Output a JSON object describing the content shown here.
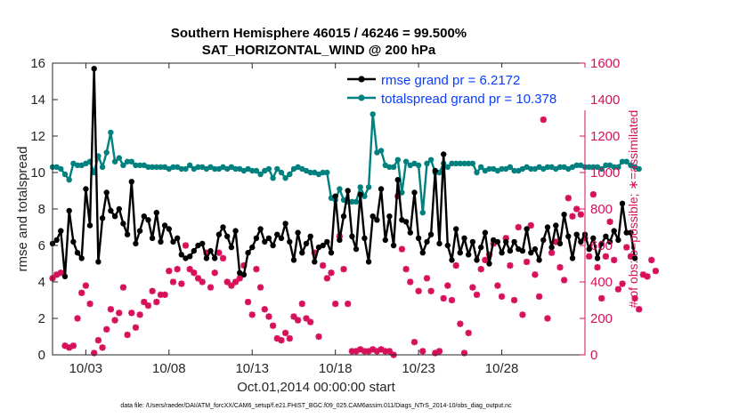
{
  "chart_data": {
    "type": "line",
    "title": "Southern Hemisphere 46015 / 46246 = 99.500%",
    "subtitle": "SAT_HORIZONTAL_WIND @ 200 hPa",
    "xlabel": "Oct.01,2014 00:00:00 start",
    "ylabel": "rmse and totalspread",
    "ylabel_right": "# of obs: o=possible; ∗=assimilated",
    "x_ticks": [
      "10/03",
      "10/08",
      "10/13",
      "10/18",
      "10/23",
      "10/28"
    ],
    "x_tick_days": [
      3,
      8,
      13,
      18,
      23,
      28
    ],
    "xlim": [
      1,
      33
    ],
    "ylim": [
      0,
      16
    ],
    "y_ticks": [
      0,
      2,
      4,
      6,
      8,
      10,
      12,
      14,
      16
    ],
    "ylim_right": [
      0,
      1600
    ],
    "y_ticks_right": [
      0,
      200,
      400,
      600,
      800,
      1000,
      1200,
      1400,
      1600
    ],
    "grid": false,
    "legend_position": "top-right",
    "footer": "data file: /Users/raeder/DAI/ATM_forcXX/CAM6_setup/f.e21.FHIST_BGC.f09_025.CAM6assim.011/Diags_NTrS_2014-10/obs_diag_output.nc",
    "x_start_day": 1,
    "x_step_days": 0.25,
    "series": [
      {
        "name": "rmse grand pr = 6.2172",
        "color": "#000000",
        "axis": "left",
        "values": [
          6.1,
          6.3,
          6.8,
          4.3,
          7.9,
          6.2,
          5.6,
          5.3,
          9.1,
          7.1,
          15.7,
          5.1,
          7.5,
          8.9,
          7.9,
          7.6,
          8.0,
          7.2,
          6.6,
          9.5,
          6.1,
          6.8,
          7.6,
          7.4,
          6.4,
          7.8,
          6.2,
          7.1,
          6.9,
          6.2,
          6.4,
          5.5,
          5.3,
          5.4,
          5.7,
          6.0,
          6.1,
          5.3,
          5.7,
          5.3,
          6.6,
          7.0,
          6.5,
          5.9,
          6.8,
          4.5,
          4.4,
          5.6,
          5.9,
          6.4,
          6.9,
          6.2,
          6.4,
          6.0,
          6.6,
          6.4,
          7.2,
          6.2,
          5.2,
          6.7,
          5.6,
          6.1,
          6.5,
          5.1,
          5.9,
          6.0,
          6.2,
          5.6,
          8.7,
          6.3,
          7.6,
          9.0,
          6.5,
          5.8,
          8.8,
          6.4,
          5.1,
          7.6,
          7.4,
          9.1,
          6.3,
          7.6,
          6.0,
          9.6,
          7.4,
          7.3,
          6.7,
          8.9,
          6.4,
          5.6,
          6.2,
          6.6,
          10.1,
          6.1,
          11.0,
          6.0,
          5.2,
          6.9,
          5.6,
          6.4,
          5.5,
          6.2,
          5.2,
          5.9,
          6.7,
          5.0,
          6.3,
          6.2,
          5.6,
          6.2,
          5.7,
          6.2,
          5.8,
          5.7,
          6.9,
          5.6,
          5.8,
          5.2,
          6.3,
          7.0,
          5.9,
          7.1,
          6.1,
          7.7,
          6.5,
          5.3,
          6.6,
          6.2,
          6.6,
          5.8,
          6.4,
          5.3,
          6.1,
          6.5,
          6.2,
          6.8,
          6.3,
          8.3,
          6.7,
          6.7,
          5.3
        ]
      },
      {
        "name": "totalspread grand pr = 10.378",
        "color": "#00807f",
        "axis": "left",
        "values": [
          10.3,
          10.3,
          10.2,
          9.9,
          9.6,
          10.5,
          10.4,
          10.4,
          10.5,
          10.6,
          10.0,
          10.9,
          10.3,
          11.1,
          12.2,
          10.6,
          10.8,
          10.4,
          10.6,
          10.6,
          10.4,
          10.4,
          10.4,
          10.3,
          10.3,
          10.3,
          10.3,
          10.3,
          10.2,
          10.3,
          10.3,
          10.2,
          10.2,
          10.4,
          10.2,
          10.3,
          10.3,
          10.2,
          10.3,
          10.2,
          10.2,
          10.3,
          10.2,
          10.3,
          10.2,
          10.2,
          10.1,
          10.2,
          10.1,
          10.1,
          9.9,
          10.1,
          10.2,
          9.7,
          10.2,
          10.0,
          9.7,
          9.9,
          10.2,
          10.3,
          10.2,
          10.1,
          10.0,
          10.0,
          9.9,
          10.0,
          10.0,
          8.6,
          8.5,
          9.1,
          8.5,
          8.4,
          8.4,
          8.4,
          9.2,
          8.7,
          9.2,
          13.2,
          11.1,
          11.2,
          10.4,
          10.3,
          10.3,
          10.7,
          8.9,
          10.6,
          10.4,
          10.5,
          10.4,
          7.8,
          10.5,
          10.7,
          10.0,
          10.0,
          10.5,
          10.3,
          10.5,
          10.5,
          10.5,
          10.5,
          10.5,
          10.5,
          10.0,
          10.3,
          10.1,
          10.2,
          10.2,
          10.1,
          10.2,
          10.2,
          10.3,
          10.1,
          10.1,
          10.2,
          10.3,
          10.2,
          10.2,
          10.3,
          10.2,
          10.3,
          10.3,
          10.2,
          10.3,
          10.3,
          10.2,
          10.3,
          10.4,
          10.4,
          10.3,
          10.3,
          10.3,
          10.3,
          10.2,
          10.4,
          10.4,
          10.3,
          10.3,
          10.6,
          10.6,
          10.4,
          10.3,
          10.2
        ]
      },
      {
        "name": "# of obs (possible / assimilated)",
        "color": "#d6105a",
        "axis": "right",
        "marker": "o / *",
        "values": [
          420,
          440,
          450,
          50,
          40,
          50,
          200,
          340,
          380,
          280,
          10,
          80,
          40,
          140,
          250,
          190,
          230,
          370,
          110,
          230,
          150,
          220,
          290,
          270,
          350,
          290,
          330,
          330,
          460,
          400,
          470,
          390,
          600,
          470,
          450,
          420,
          400,
          560,
          370,
          450,
          560,
          530,
          400,
          380,
          400,
          420,
          490,
          290,
          220,
          470,
          370,
          250,
          210,
          160,
          90,
          80,
          120,
          90,
          210,
          190,
          280,
          200,
          180,
          560,
          100,
          490,
          420,
          450,
          280,
          650,
          470,
          280,
          20,
          20,
          30,
          20,
          20,
          30,
          20,
          30,
          20,
          20,
          0,
          870,
          580,
          470,
          400,
          70,
          350,
          20,
          420,
          350,
          10,
          20,
          310,
          380,
          300,
          490,
          170,
          10,
          120,
          370,
          330,
          470,
          520,
          550,
          610,
          380,
          320,
          640,
          490,
          300,
          700,
          220,
          510,
          710,
          440,
          320,
          1290,
          200,
          560,
          620,
          480,
          410,
          860,
          760,
          800,
          770,
          640,
          540,
          880,
          480,
          310,
          540,
          730,
          520,
          360,
          390,
          590,
          540,
          310,
          250,
          440,
          430,
          520,
          460
        ]
      }
    ]
  }
}
